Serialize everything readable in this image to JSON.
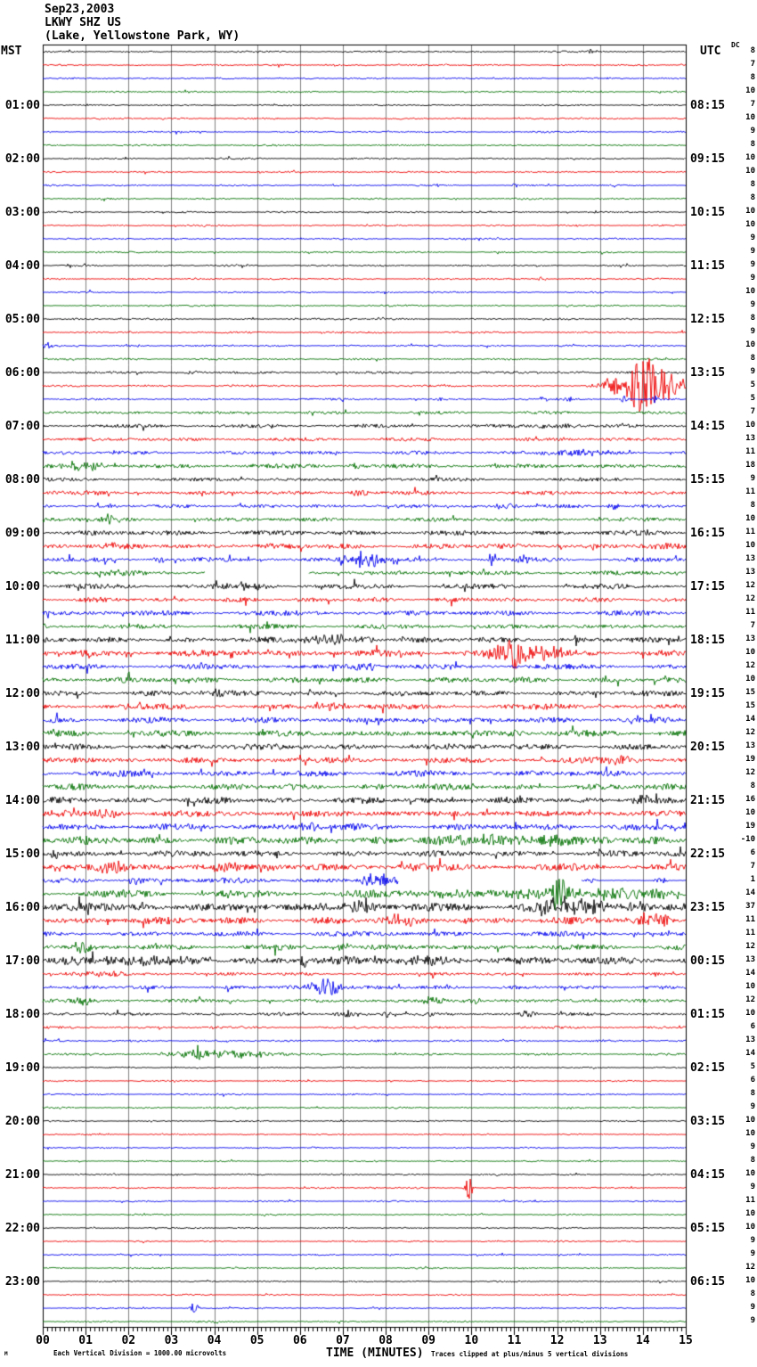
{
  "header": {
    "date": "Sep23,2003",
    "station": "LKWY SHZ US",
    "location": "(Lake, Yellowstone Park, WY)"
  },
  "axes": {
    "left_header": "MST",
    "right_header": "UTC",
    "dc_header": "DC",
    "x_title": "TIME (MINUTES)",
    "x_ticks": [
      "00",
      "01",
      "02",
      "03",
      "04",
      "05",
      "06",
      "07",
      "08",
      "09",
      "10",
      "11",
      "12",
      "13",
      "14",
      "15"
    ]
  },
  "footer": {
    "division_note": "Each Vertical Division = 1000.00 microvolts",
    "clip_note": "Traces clipped at plus/minus 5 vertical divisions",
    "corner_mark": "M"
  },
  "chart_data": {
    "type": "seismogram-helicorder",
    "station_code": "LKWY SHZ US",
    "date": "Sep23,2003",
    "timezone_left": "MST",
    "timezone_right": "UTC",
    "minutes_per_line": 15,
    "microvolts_per_division": 1000,
    "clip_divisions": 5,
    "trace_color_cycle": [
      "#000000",
      "#ee0000",
      "#0000ee",
      "#007000"
    ],
    "grid_color": "#7f7f7f",
    "rows": [
      {
        "dc": 8,
        "amp": 0.8,
        "ev": [
          [
            12.8,
            0.08,
            3
          ]
        ]
      },
      {
        "dc": 7,
        "amp": 0.8
      },
      {
        "dc": 8,
        "amp": 0.8
      },
      {
        "dc": 10,
        "amp": 0.8
      },
      {
        "mst": "01:00",
        "utc": "08:15",
        "dc": 7,
        "amp": 0.8
      },
      {
        "dc": 10,
        "amp": 0.8
      },
      {
        "dc": 9,
        "amp": 0.8
      },
      {
        "dc": 8,
        "amp": 0.8
      },
      {
        "mst": "02:00",
        "utc": "09:15",
        "dc": 10,
        "amp": 0.8
      },
      {
        "dc": 10,
        "amp": 0.8
      },
      {
        "dc": 8,
        "amp": 0.8,
        "ev": [
          [
            11.05,
            0.1,
            2.5
          ]
        ]
      },
      {
        "dc": 8,
        "amp": 0.8
      },
      {
        "mst": "03:00",
        "utc": "10:15",
        "dc": 10,
        "amp": 0.8
      },
      {
        "dc": 10,
        "amp": 0.8
      },
      {
        "dc": 9,
        "amp": 0.8
      },
      {
        "dc": 9,
        "amp": 0.8
      },
      {
        "mst": "04:00",
        "utc": "11:15",
        "dc": 9,
        "amp": 0.8
      },
      {
        "dc": 9,
        "amp": 0.8,
        "ev": [
          [
            11.65,
            0.1,
            3
          ]
        ]
      },
      {
        "dc": 10,
        "amp": 0.8
      },
      {
        "dc": 9,
        "amp": 0.8
      },
      {
        "mst": "05:00",
        "utc": "12:15",
        "dc": 8,
        "amp": 0.9
      },
      {
        "dc": 9,
        "amp": 0.9
      },
      {
        "dc": 10,
        "amp": 0.9,
        "ev": [
          [
            0.15,
            0.15,
            3
          ]
        ]
      },
      {
        "dc": 8,
        "amp": 0.9
      },
      {
        "mst": "06:00",
        "utc": "13:15",
        "dc": 9,
        "amp": 1.2,
        "ev": [
          [
            3.5,
            0.15,
            2.5
          ]
        ]
      },
      {
        "dc": 5,
        "amp": 1.0,
        "ev": [
          [
            13.35,
            0.4,
            10
          ],
          [
            13.95,
            0.35,
            30
          ],
          [
            14.35,
            0.45,
            16
          ],
          [
            14.8,
            0.8,
            6
          ]
        ]
      },
      {
        "dc": 5,
        "amp": 1.0,
        "ev": [
          [
            9.3,
            0.08,
            3
          ],
          [
            11.7,
            0.08,
            5
          ],
          [
            12.3,
            0.08,
            4
          ],
          [
            13.55,
            0.1,
            4
          ],
          [
            14.3,
            0.08,
            6
          ]
        ]
      },
      {
        "dc": 7,
        "amp": 1.4
      },
      {
        "mst": "07:00",
        "utc": "14:15",
        "dc": 10,
        "amp": 1.7,
        "ev": [
          [
            12.0,
            0.5,
            3
          ]
        ]
      },
      {
        "dc": 13,
        "amp": 1.7
      },
      {
        "dc": 11,
        "amp": 1.7,
        "ev": [
          [
            12.3,
            0.7,
            4
          ]
        ]
      },
      {
        "dc": 18,
        "amp": 2.1,
        "ev": [
          [
            1.0,
            0.45,
            5
          ],
          [
            7.3,
            0.25,
            4
          ]
        ]
      },
      {
        "mst": "08:00",
        "utc": "15:15",
        "dc": 9,
        "amp": 1.7
      },
      {
        "dc": 11,
        "amp": 1.9,
        "ev": [
          [
            7.4,
            0.25,
            4
          ]
        ]
      },
      {
        "dc": 8,
        "amp": 1.7,
        "ev": [
          [
            10.8,
            0.25,
            4
          ],
          [
            13.3,
            0.15,
            4
          ]
        ]
      },
      {
        "dc": 10,
        "amp": 1.9,
        "ev": [
          [
            0.9,
            1.0,
            1.5
          ],
          [
            1.55,
            0.08,
            7
          ]
        ]
      },
      {
        "mst": "09:00",
        "utc": "16:15",
        "dc": 11,
        "amp": 2.4
      },
      {
        "dc": 10,
        "amp": 2.6,
        "ev": [
          [
            1.6,
            0.15,
            5
          ],
          [
            12.1,
            0.15,
            4
          ]
        ]
      },
      {
        "dc": 13,
        "amp": 2.1,
        "ev": [
          [
            2.7,
            0.15,
            4
          ],
          [
            3.8,
            0.15,
            4
          ],
          [
            7.5,
            0.45,
            10
          ],
          [
            10.5,
            0.1,
            9
          ],
          [
            11.1,
            0.25,
            5
          ]
        ]
      },
      {
        "dc": 13,
        "amp": 2.1,
        "ev": [
          [
            2.0,
            1.2,
            2
          ]
        ],
        "gap": [
          3.8,
          6.2
        ]
      },
      {
        "mst": "10:00",
        "utc": "17:15",
        "dc": 12,
        "amp": 2.4,
        "ev": [
          [
            5.0,
            0.5,
            3
          ]
        ]
      },
      {
        "dc": 12,
        "amp": 2.2
      },
      {
        "dc": 11,
        "amp": 2.4
      },
      {
        "dc": 7,
        "amp": 2.2
      },
      {
        "mst": "11:00",
        "utc": "18:15",
        "dc": 13,
        "amp": 2.7,
        "ev": [
          [
            6.6,
            0.6,
            6
          ],
          [
            7.55,
            0.25,
            4
          ]
        ]
      },
      {
        "dc": 10,
        "amp": 3.1,
        "ev": [
          [
            1.05,
            0.25,
            4
          ],
          [
            11.0,
            0.5,
            16
          ],
          [
            11.9,
            0.3,
            8
          ]
        ]
      },
      {
        "dc": 12,
        "amp": 2.4,
        "ev": [
          [
            7.5,
            0.35,
            5
          ]
        ]
      },
      {
        "dc": 10,
        "amp": 2.7
      },
      {
        "mst": "12:00",
        "utc": "19:15",
        "dc": 15,
        "amp": 2.7,
        "ev": [
          [
            4.1,
            0.15,
            8
          ]
        ]
      },
      {
        "dc": 15,
        "amp": 2.7,
        "ev": [
          [
            6.8,
            0.4,
            4
          ]
        ]
      },
      {
        "dc": 14,
        "amp": 2.7
      },
      {
        "dc": 12,
        "amp": 2.9,
        "ev": [
          [
            11.0,
            0.25,
            4
          ]
        ]
      },
      {
        "mst": "13:00",
        "utc": "20:15",
        "dc": 13,
        "amp": 2.9
      },
      {
        "dc": 19,
        "amp": 2.9,
        "ev": [
          [
            13.5,
            0.4,
            5
          ]
        ]
      },
      {
        "dc": 12,
        "amp": 2.9
      },
      {
        "dc": 8,
        "amp": 2.9,
        "ev": [
          [
            8.9,
            0.2,
            4
          ]
        ]
      },
      {
        "mst": "14:00",
        "utc": "21:15",
        "dc": 16,
        "amp": 3.1,
        "ev": [
          [
            14.0,
            0.25,
            5
          ]
        ]
      },
      {
        "dc": 10,
        "amp": 3.1,
        "ev": [
          [
            1.5,
            0.35,
            6
          ]
        ]
      },
      {
        "dc": 19,
        "amp": 3.1,
        "ev": [
          [
            6.3,
            0.35,
            5
          ]
        ]
      },
      {
        "dc": -10,
        "amp": 3.9,
        "ev": [
          [
            10.5,
            0.9,
            6
          ],
          [
            11.9,
            0.35,
            8
          ]
        ]
      },
      {
        "mst": "15:00",
        "utc": "22:15",
        "dc": 6,
        "amp": 3.1,
        "ev": [
          [
            0.35,
            0.25,
            5
          ]
        ]
      },
      {
        "dc": 7,
        "amp": 3.4,
        "ev": [
          [
            1.6,
            0.45,
            6
          ],
          [
            4.3,
            0.35,
            5
          ],
          [
            8.6,
            0.35,
            5
          ]
        ]
      },
      {
        "dc": 1,
        "amp": 2.7,
        "ev": [
          [
            2.2,
            0.25,
            5
          ],
          [
            7.75,
            0.4,
            8
          ],
          [
            12.75,
            0.15,
            3
          ],
          [
            14.4,
            0.15,
            4
          ]
        ],
        "gap": [
          8.3,
          12.55
        ],
        "dim": [
          12.55,
          15
        ]
      },
      {
        "dc": 14,
        "amp": 3.4,
        "ev": [
          [
            9.3,
            0.7,
            5
          ],
          [
            11.3,
            0.45,
            6
          ],
          [
            12.05,
            0.22,
            22
          ],
          [
            12.8,
            1.6,
            5
          ],
          [
            14.4,
            0.9,
            4
          ]
        ]
      },
      {
        "mst": "16:00",
        "utc": "23:15",
        "dc": 37,
        "amp": 3.9,
        "ev": [
          [
            2.4,
            0.25,
            5
          ],
          [
            7.5,
            0.35,
            9
          ],
          [
            12.2,
            1.0,
            9
          ],
          [
            13.9,
            0.3,
            6
          ]
        ]
      },
      {
        "dc": 11,
        "amp": 3.4,
        "ev": [
          [
            8.3,
            0.35,
            6
          ],
          [
            9.9,
            0.15,
            5
          ],
          [
            14.2,
            0.45,
            6
          ]
        ]
      },
      {
        "dc": 11,
        "amp": 2.4
      },
      {
        "dc": 12,
        "amp": 2.7,
        "ev": [
          [
            0.9,
            0.25,
            6
          ],
          [
            7.0,
            0.25,
            5
          ]
        ]
      },
      {
        "mst": "17:00",
        "utc": "00:15",
        "dc": 13,
        "amp": 3.7,
        "ev": [
          [
            2.5,
            1.6,
            4
          ],
          [
            6.05,
            0.1,
            12
          ],
          [
            9.0,
            1.2,
            3
          ]
        ]
      },
      {
        "dc": 14,
        "amp": 1.5,
        "ev": [
          [
            1.5,
            0.7,
            3
          ]
        ]
      },
      {
        "dc": 10,
        "amp": 1.8,
        "ev": [
          [
            6.6,
            0.4,
            10
          ]
        ]
      },
      {
        "dc": 12,
        "amp": 1.8,
        "ev": [
          [
            0.95,
            0.15,
            6
          ],
          [
            9.1,
            0.25,
            4
          ],
          [
            10.1,
            0.15,
            4
          ]
        ]
      },
      {
        "mst": "18:00",
        "utc": "01:15",
        "dc": 10,
        "amp": 1.5,
        "ev": [
          [
            7.1,
            0.25,
            4
          ],
          [
            8.0,
            0.15,
            4
          ],
          [
            11.3,
            0.25,
            4
          ]
        ]
      },
      {
        "dc": 6,
        "amp": 1.2
      },
      {
        "dc": 13,
        "amp": 1.0
      },
      {
        "dc": 14,
        "amp": 1.0,
        "ev": [
          [
            3.62,
            0.12,
            12
          ],
          [
            3.8,
            1.1,
            4
          ],
          [
            5.0,
            0.7,
            3
          ]
        ]
      },
      {
        "mst": "19:00",
        "utc": "02:15",
        "dc": 5,
        "amp": 0.7
      },
      {
        "dc": 6,
        "amp": 0.7
      },
      {
        "dc": 8,
        "amp": 0.8
      },
      {
        "dc": 9,
        "amp": 0.8
      },
      {
        "mst": "20:00",
        "utc": "03:15",
        "dc": 10,
        "amp": 0.7
      },
      {
        "dc": 10,
        "amp": 0.7
      },
      {
        "dc": 9,
        "amp": 0.7
      },
      {
        "dc": 8,
        "amp": 0.7
      },
      {
        "mst": "21:00",
        "utc": "04:15",
        "dc": 10,
        "amp": 0.7
      },
      {
        "dc": 9,
        "amp": 0.7,
        "ev": [
          [
            9.95,
            0.1,
            12
          ]
        ]
      },
      {
        "dc": 11,
        "amp": 0.7
      },
      {
        "dc": 10,
        "amp": 0.7
      },
      {
        "mst": "22:00",
        "utc": "05:15",
        "dc": 10,
        "amp": 0.7
      },
      {
        "dc": 9,
        "amp": 0.7
      },
      {
        "dc": 9,
        "amp": 0.7
      },
      {
        "dc": 12,
        "amp": 0.7
      },
      {
        "mst": "23:00",
        "utc": "06:15",
        "dc": 10,
        "amp": 0.7
      },
      {
        "dc": 8,
        "amp": 0.7
      },
      {
        "dc": 9,
        "amp": 0.7,
        "ev": [
          [
            3.55,
            0.1,
            7
          ]
        ]
      },
      {
        "dc": 9,
        "amp": 0.7
      }
    ]
  }
}
